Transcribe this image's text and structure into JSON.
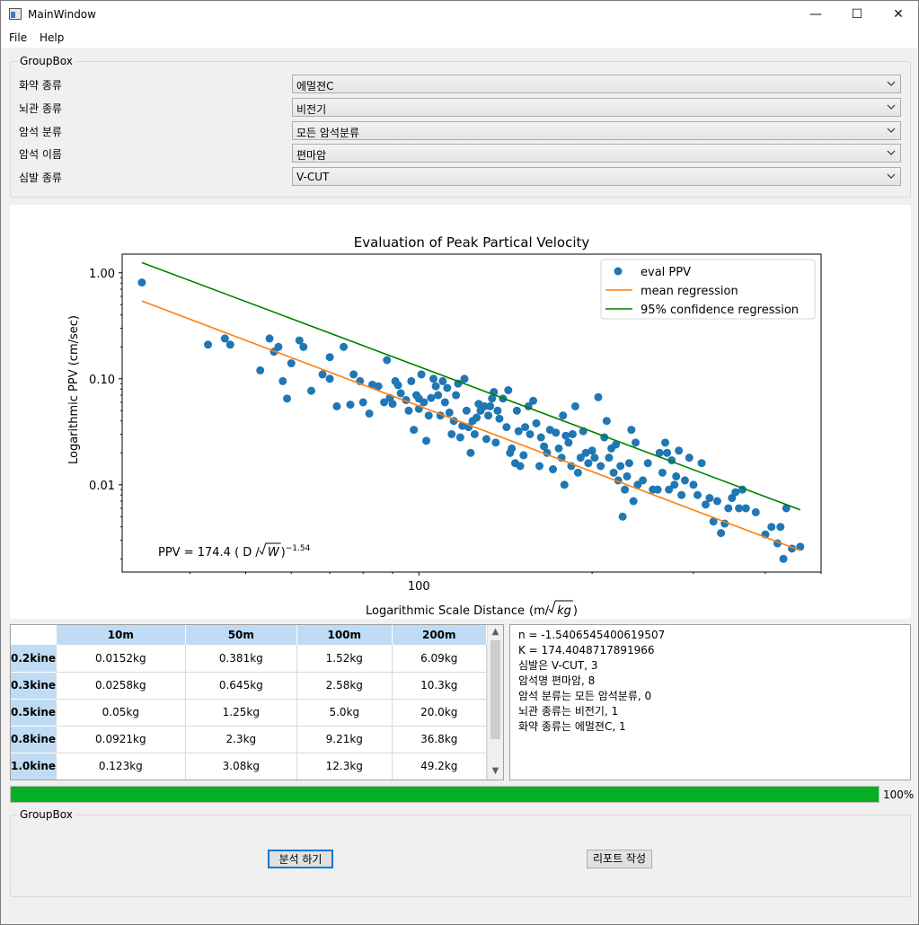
{
  "window": {
    "title": "MainWindow",
    "minimize": "—",
    "maximize": "☐",
    "close": "✕"
  },
  "menu": {
    "file": "File",
    "help": "Help"
  },
  "options_group": {
    "title": "GroupBox",
    "rows": [
      {
        "label": "화약 종류",
        "value": "에멀젼C"
      },
      {
        "label": "뇌관 종류",
        "value": "비전기"
      },
      {
        "label": "암석 분류",
        "value": "모든 암석분류"
      },
      {
        "label": "암석 이름",
        "value": "편마암"
      },
      {
        "label": "심발 종류",
        "value": "V-CUT"
      }
    ]
  },
  "chart_data": {
    "type": "scatter",
    "title": "Evaluation of Peak Partical Velocity",
    "xlabel": "Logarithmic Scale Distance",
    "xlabel_unit_prefix": "(m/",
    "xlabel_unit_radicand": "kg",
    "xlabel_unit_suffix": ")",
    "ylabel": "Logarithmic PPV (cm/sec)",
    "x_scale": "log",
    "y_scale": "log",
    "xlim": [
      30.5,
      500
    ],
    "ylim": [
      0.0015,
      1.5
    ],
    "xticks": [
      "100"
    ],
    "yticks": [
      "1.00",
      "0.10",
      "0.01"
    ],
    "legend_position": "top-right",
    "formula": {
      "prefix": "PPV =   174.4 ( D / ",
      "radicand": "W",
      "suffix": " )",
      "exponent": "−1.54"
    },
    "series": [
      {
        "name": "eval PPV",
        "kind": "points",
        "color": "#1f77b4",
        "points": [
          [
            33,
            0.81
          ],
          [
            43,
            0.21
          ],
          [
            46,
            0.24
          ],
          [
            47,
            0.21
          ],
          [
            53,
            0.12
          ],
          [
            55,
            0.24
          ],
          [
            56,
            0.18
          ],
          [
            57,
            0.2
          ],
          [
            58,
            0.095
          ],
          [
            59,
            0.065
          ],
          [
            60,
            0.14
          ],
          [
            62,
            0.23
          ],
          [
            63,
            0.2
          ],
          [
            65,
            0.077
          ],
          [
            68,
            0.11
          ],
          [
            70,
            0.1
          ],
          [
            70,
            0.16
          ],
          [
            72,
            0.055
          ],
          [
            74,
            0.2
          ],
          [
            76,
            0.057
          ],
          [
            77,
            0.11
          ],
          [
            79,
            0.095
          ],
          [
            80,
            0.06
          ],
          [
            82,
            0.047
          ],
          [
            83,
            0.088
          ],
          [
            85,
            0.085
          ],
          [
            87,
            0.06
          ],
          [
            88,
            0.15
          ],
          [
            89,
            0.066
          ],
          [
            90,
            0.058
          ],
          [
            91,
            0.095
          ],
          [
            92,
            0.087
          ],
          [
            93,
            0.073
          ],
          [
            95,
            0.063
          ],
          [
            96,
            0.05
          ],
          [
            97,
            0.095
          ],
          [
            98,
            0.033
          ],
          [
            99,
            0.07
          ],
          [
            100,
            0.052
          ],
          [
            100,
            0.065
          ],
          [
            101,
            0.11
          ],
          [
            102,
            0.06
          ],
          [
            103,
            0.026
          ],
          [
            104,
            0.045
          ],
          [
            105,
            0.066
          ],
          [
            106,
            0.1
          ],
          [
            107,
            0.085
          ],
          [
            108,
            0.07
          ],
          [
            109,
            0.045
          ],
          [
            110,
            0.095
          ],
          [
            111,
            0.06
          ],
          [
            112,
            0.082
          ],
          [
            113,
            0.048
          ],
          [
            114,
            0.03
          ],
          [
            115,
            0.04
          ],
          [
            116,
            0.07
          ],
          [
            117,
            0.09
          ],
          [
            118,
            0.028
          ],
          [
            119,
            0.036
          ],
          [
            120,
            0.1
          ],
          [
            121,
            0.05
          ],
          [
            122,
            0.035
          ],
          [
            123,
            0.02
          ],
          [
            124,
            0.04
          ],
          [
            125,
            0.03
          ],
          [
            126,
            0.043
          ],
          [
            127,
            0.058
          ],
          [
            128,
            0.05
          ],
          [
            130,
            0.055
          ],
          [
            131,
            0.027
          ],
          [
            132,
            0.045
          ],
          [
            133,
            0.055
          ],
          [
            134,
            0.065
          ],
          [
            135,
            0.075
          ],
          [
            136,
            0.025
          ],
          [
            137,
            0.05
          ],
          [
            138,
            0.042
          ],
          [
            140,
            0.065
          ],
          [
            142,
            0.035
          ],
          [
            143,
            0.078
          ],
          [
            144,
            0.02
          ],
          [
            145,
            0.022
          ],
          [
            147,
            0.016
          ],
          [
            148,
            0.05
          ],
          [
            149,
            0.032
          ],
          [
            150,
            0.015
          ],
          [
            152,
            0.019
          ],
          [
            153,
            0.035
          ],
          [
            155,
            0.055
          ],
          [
            156,
            0.03
          ],
          [
            158,
            0.062
          ],
          [
            160,
            0.038
          ],
          [
            162,
            0.015
          ],
          [
            163,
            0.028
          ],
          [
            165,
            0.023
          ],
          [
            167,
            0.02
          ],
          [
            169,
            0.033
          ],
          [
            171,
            0.014
          ],
          [
            173,
            0.031
          ],
          [
            175,
            0.022
          ],
          [
            177,
            0.018
          ],
          [
            178,
            0.045
          ],
          [
            179,
            0.01
          ],
          [
            180,
            0.029
          ],
          [
            182,
            0.025
          ],
          [
            184,
            0.015
          ],
          [
            185,
            0.03
          ],
          [
            187,
            0.055
          ],
          [
            189,
            0.013
          ],
          [
            191,
            0.018
          ],
          [
            193,
            0.032
          ],
          [
            195,
            0.02
          ],
          [
            197,
            0.016
          ],
          [
            200,
            0.021
          ],
          [
            202,
            0.018
          ],
          [
            205,
            0.067
          ],
          [
            207,
            0.015
          ],
          [
            210,
            0.028
          ],
          [
            212,
            0.04
          ],
          [
            214,
            0.018
          ],
          [
            216,
            0.022
          ],
          [
            218,
            0.013
          ],
          [
            220,
            0.024
          ],
          [
            222,
            0.011
          ],
          [
            224,
            0.015
          ],
          [
            226,
            0.005
          ],
          [
            228,
            0.009
          ],
          [
            230,
            0.012
          ],
          [
            232,
            0.016
          ],
          [
            234,
            0.033
          ],
          [
            236,
            0.007
          ],
          [
            238,
            0.025
          ],
          [
            240,
            0.01
          ],
          [
            245,
            0.011
          ],
          [
            250,
            0.016
          ],
          [
            255,
            0.009
          ],
          [
            260,
            0.009
          ],
          [
            262,
            0.02
          ],
          [
            265,
            0.013
          ],
          [
            268,
            0.025
          ],
          [
            270,
            0.02
          ],
          [
            272,
            0.009
          ],
          [
            275,
            0.017
          ],
          [
            278,
            0.01
          ],
          [
            280,
            0.012
          ],
          [
            283,
            0.021
          ],
          [
            286,
            0.008
          ],
          [
            290,
            0.011
          ],
          [
            295,
            0.018
          ],
          [
            300,
            0.01
          ],
          [
            305,
            0.008
          ],
          [
            310,
            0.016
          ],
          [
            315,
            0.0065
          ],
          [
            320,
            0.0075
          ],
          [
            325,
            0.0045
          ],
          [
            330,
            0.007
          ],
          [
            335,
            0.0035
          ],
          [
            340,
            0.0043
          ],
          [
            345,
            0.006
          ],
          [
            350,
            0.0075
          ],
          [
            355,
            0.0085
          ],
          [
            360,
            0.006
          ],
          [
            365,
            0.009
          ],
          [
            370,
            0.006
          ],
          [
            385,
            0.0055
          ],
          [
            400,
            0.0034
          ],
          [
            410,
            0.004
          ],
          [
            420,
            0.0028
          ],
          [
            425,
            0.004
          ],
          [
            430,
            0.002
          ],
          [
            435,
            0.006
          ],
          [
            445,
            0.0025
          ],
          [
            460,
            0.0026
          ]
        ]
      },
      {
        "name": "mean regression",
        "kind": "line",
        "color": "#ff7f0e",
        "points": [
          [
            33,
            0.542
          ],
          [
            460,
            0.0024
          ]
        ]
      },
      {
        "name": "95% confidence regression",
        "kind": "line",
        "color": "#008000",
        "points": [
          [
            33,
            1.25
          ],
          [
            460,
            0.0058
          ]
        ]
      }
    ]
  },
  "table": {
    "columns": [
      "10m",
      "50m",
      "100m",
      "200m"
    ],
    "rows": [
      {
        "head": "0.2kine",
        "cells": [
          "0.0152kg",
          "0.381kg",
          "1.52kg",
          "6.09kg"
        ]
      },
      {
        "head": "0.3kine",
        "cells": [
          "0.0258kg",
          "0.645kg",
          "2.58kg",
          "10.3kg"
        ]
      },
      {
        "head": "0.5kine",
        "cells": [
          "0.05kg",
          "1.25kg",
          "5.0kg",
          "20.0kg"
        ]
      },
      {
        "head": "0.8kine",
        "cells": [
          "0.0921kg",
          "2.3kg",
          "9.21kg",
          "36.8kg"
        ]
      },
      {
        "head": "1.0kine",
        "cells": [
          "0.123kg",
          "3.08kg",
          "12.3kg",
          "49.2kg"
        ]
      }
    ],
    "scroll_up": "▲",
    "scroll_down": "▼"
  },
  "output_lines": [
    "n = -1.5406545400619507",
    "K = 174.4048717891966",
    "심발은 V-CUT, 3",
    "암석명 편마암, 8",
    "암석 분류는 모든 암석분류, 0",
    "뇌관 종류는 비전기, 1",
    "화약 종류는 에멀젼C, 1"
  ],
  "progress": {
    "value": 100,
    "label": "100%"
  },
  "actions_group": {
    "title": "GroupBox",
    "analyze_label": "분석 하기",
    "report_label": "리포트 작성"
  }
}
